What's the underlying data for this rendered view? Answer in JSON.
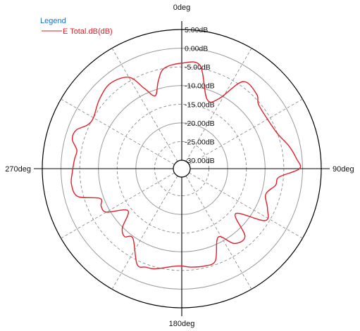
{
  "chart_data": {
    "type": "polar-line",
    "legend": {
      "title": "Legend",
      "placement": "top-left",
      "entries": [
        {
          "name": "E Total.dB(dB)",
          "color": "#e0202a"
        }
      ]
    },
    "angle_labels": [
      {
        "text": "0deg",
        "angle": 0
      },
      {
        "text": "90deg",
        "angle": 90
      },
      {
        "text": "180deg",
        "angle": 180
      },
      {
        "text": "270deg",
        "angle": 270
      }
    ],
    "radial_axis": {
      "unit": "dB",
      "max": 5,
      "min": -30,
      "step": 5,
      "tick_labels": [
        "5.00dB",
        "0.00dB",
        "-5.00dB",
        "-10.00dB",
        "-15.00dB",
        "-20.00dB",
        "-25.00dB",
        "-30.00dB"
      ],
      "tick_values": [
        5,
        0,
        -5,
        -10,
        -15,
        -20,
        -25,
        -30
      ]
    },
    "grid": {
      "angular_step_deg": 30,
      "dashed_rings": true,
      "solid_rings": true
    },
    "series": [
      {
        "name": "E Total.dB(dB)",
        "color": "#e0202a",
        "theta_deg": [
          0,
          10,
          20,
          28,
          35,
          45,
          50,
          60,
          70,
          78,
          85,
          90,
          95,
          100,
          107,
          115,
          122,
          130,
          137,
          145,
          152,
          160,
          167,
          175,
          180,
          185,
          195,
          200,
          205,
          215,
          220,
          225,
          232,
          240,
          245,
          250,
          255,
          262,
          268,
          275,
          280,
          285,
          290,
          295,
          300,
          310,
          320,
          330,
          335,
          340,
          345,
          350,
          360
        ],
        "r_db": [
          -4.0,
          -4.2,
          -12.5,
          -11.0,
          -3.8,
          -4.0,
          -5.5,
          -5.8,
          -5.0,
          -3.0,
          -1.5,
          -0.8,
          -6.2,
          -6.8,
          -8.8,
          -7.0,
          -6.0,
          -13.5,
          -7.5,
          -7.8,
          -11.5,
          -6.0,
          -5.5,
          -5.8,
          -6.2,
          -6.0,
          -4.5,
          -4.2,
          -4.0,
          -9.5,
          -8.5,
          -9.8,
          -14.0,
          -9.0,
          -8.5,
          -9.0,
          -3.5,
          -2.5,
          -3.0,
          -3.5,
          -3.8,
          -2.0,
          -2.2,
          -4.5,
          -5.0,
          -3.5,
          -2.5,
          -4.0,
          -8.5,
          -11.5,
          -8.0,
          -5.0,
          -4.0
        ]
      }
    ]
  }
}
